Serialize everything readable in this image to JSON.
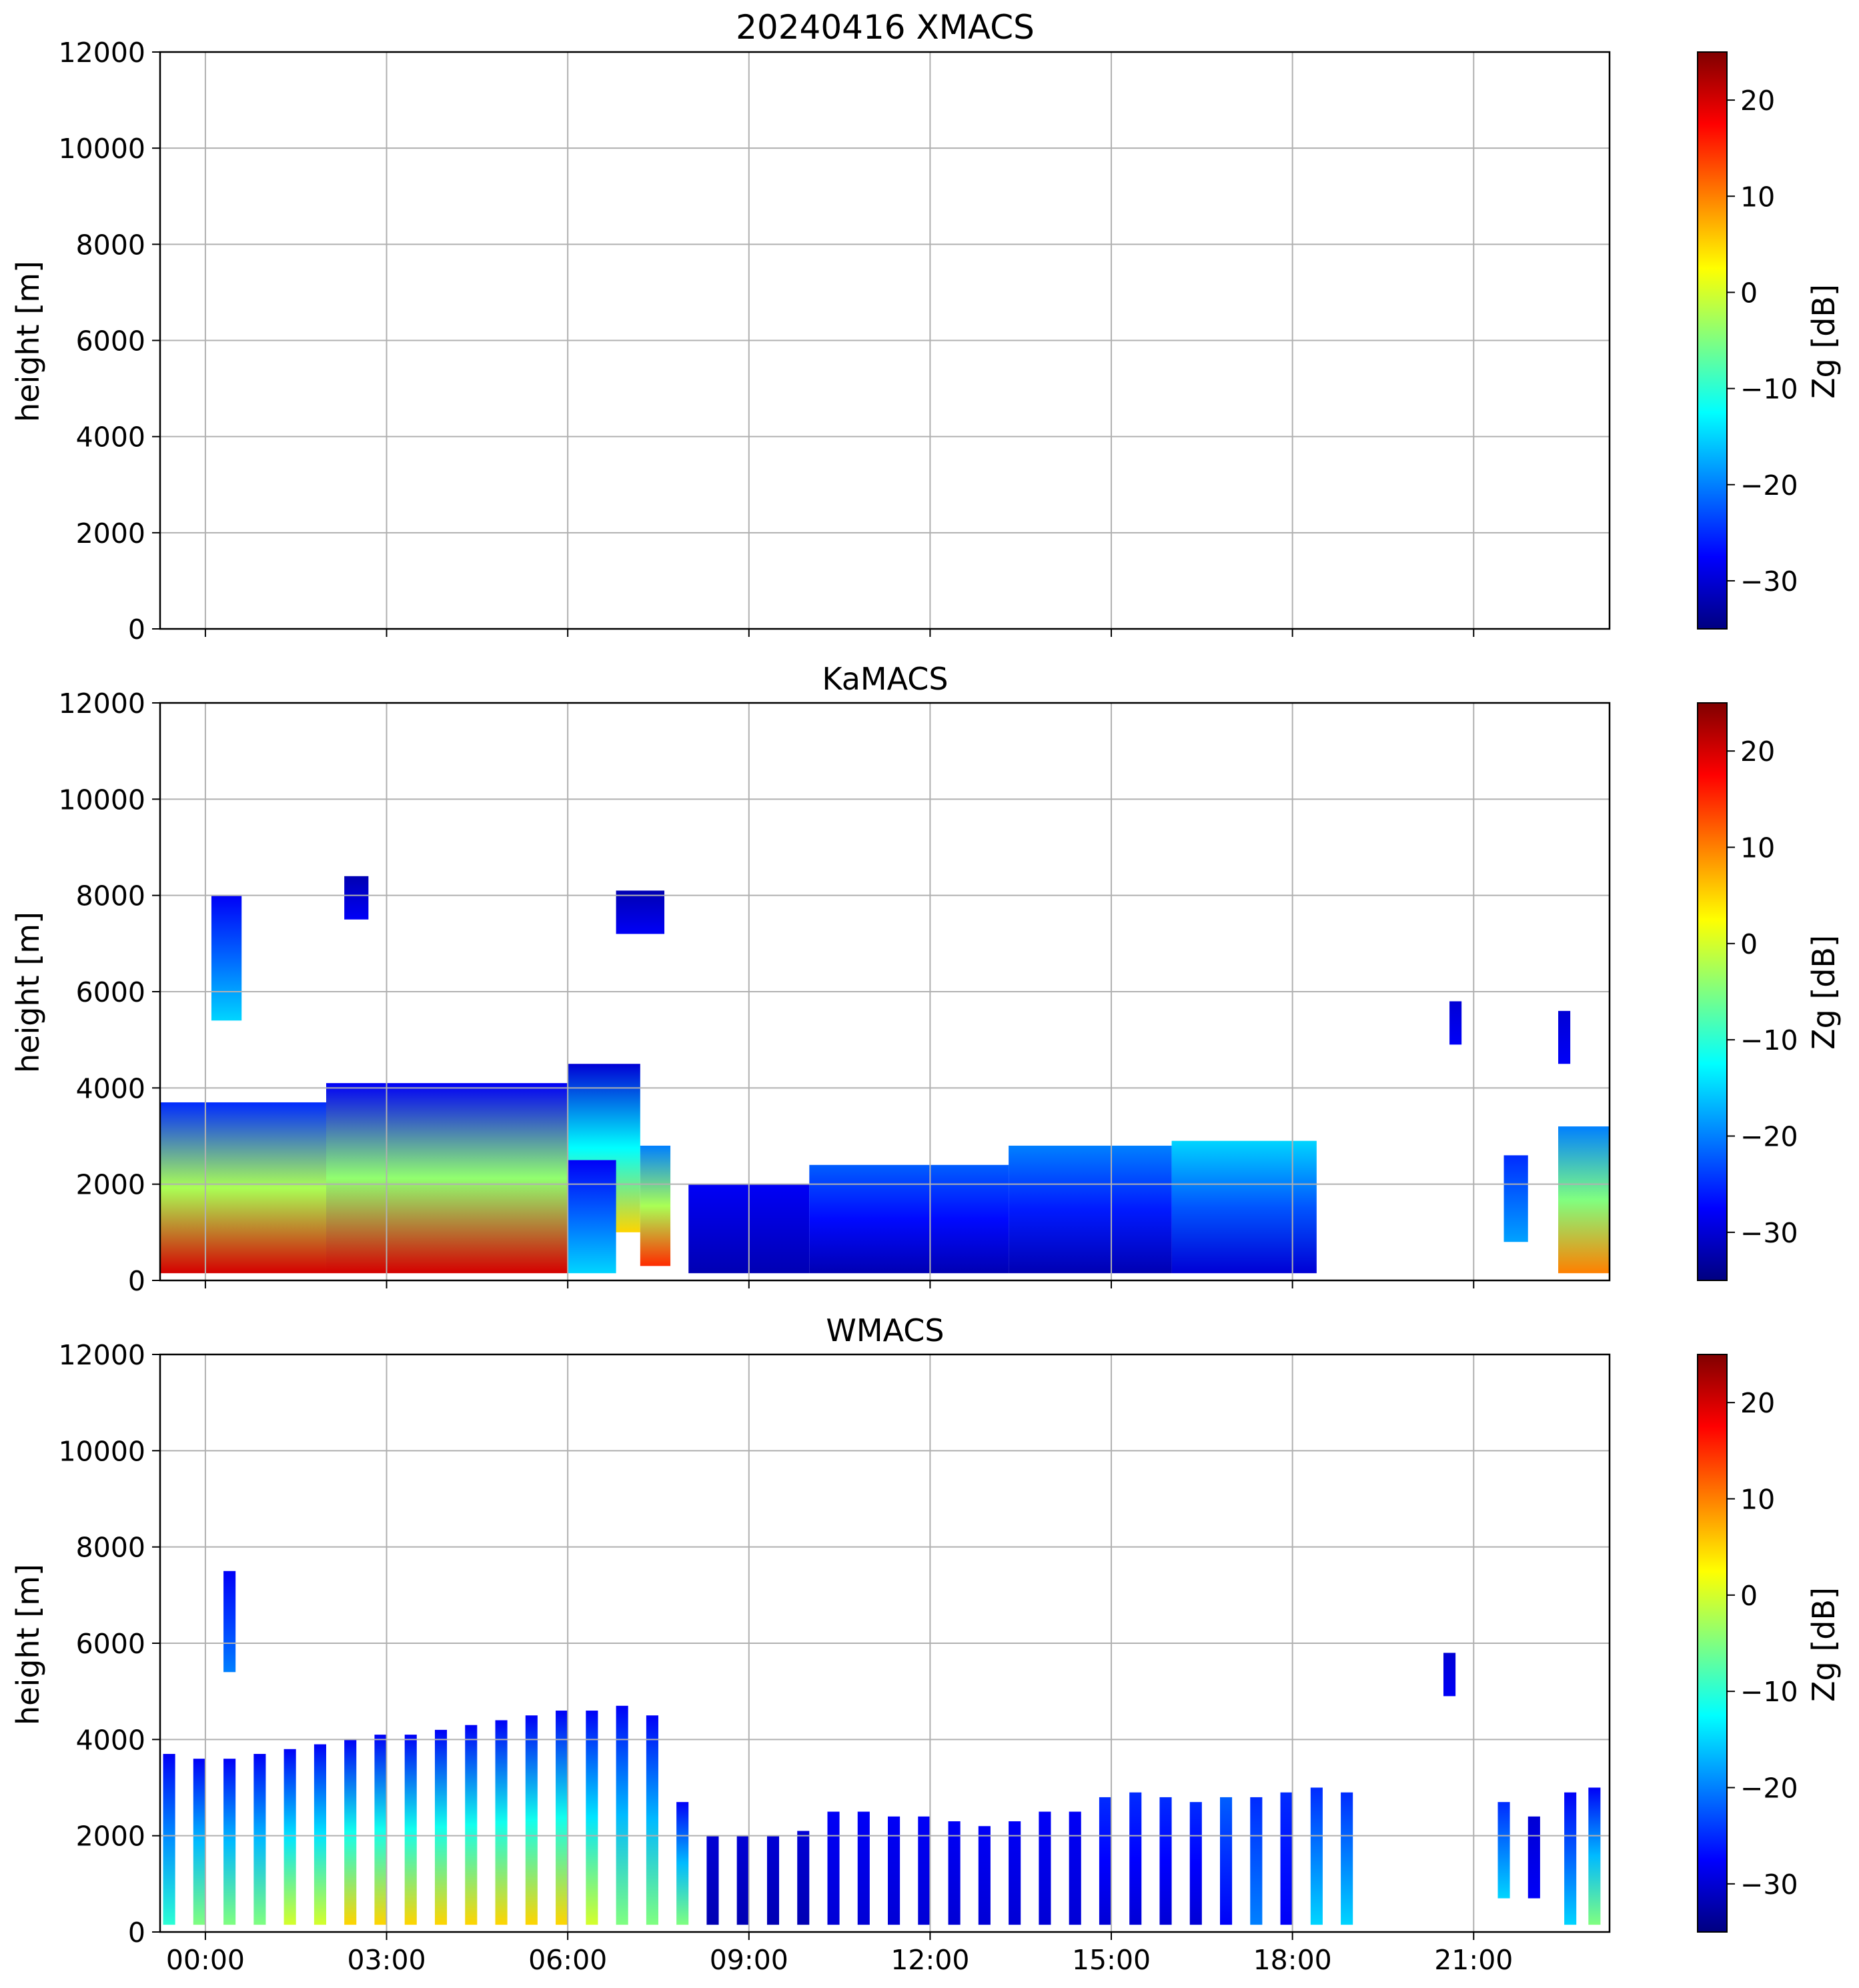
{
  "figure": {
    "colorbar_label": "Zg [dB]",
    "colorbar_ticks": [
      20,
      10,
      0,
      -10,
      -20,
      -30
    ],
    "colorbar_range": [
      -35,
      25
    ],
    "colormap": [
      "#000080",
      "#0000ff",
      "#0080ff",
      "#00ffff",
      "#80ff80",
      "#ffff00",
      "#ff8000",
      "#ff0000",
      "#800000"
    ],
    "grid_color": "#b0b0b0"
  },
  "chart_data": [
    {
      "type": "heatmap",
      "title": "20240416 XMACS",
      "ylabel": "height [m]",
      "xlabel": "",
      "ylim": [
        0,
        12000
      ],
      "xlim_hours": [
        -0.75,
        23.25
      ],
      "yticks": [
        0,
        2000,
        4000,
        6000,
        8000,
        10000,
        12000
      ],
      "xtick_hours": [
        0,
        3,
        6,
        9,
        12,
        15,
        18,
        21
      ],
      "xtick_labels": [],
      "echoes": []
    },
    {
      "type": "heatmap",
      "title": "KaMACS",
      "ylabel": "height [m]",
      "xlabel": "",
      "ylim": [
        0,
        12000
      ],
      "xlim_hours": [
        -0.75,
        23.25
      ],
      "yticks": [
        0,
        2000,
        4000,
        6000,
        8000,
        10000,
        12000
      ],
      "xtick_hours": [
        0,
        3,
        6,
        9,
        12,
        15,
        18,
        21
      ],
      "xtick_labels": [],
      "echoes": [
        {
          "t0": -0.75,
          "t1": 2.0,
          "h0": 150,
          "h1": 3700,
          "zg_base": 20,
          "zg_top": -25
        },
        {
          "t0": 2.0,
          "t1": 6.0,
          "h0": 150,
          "h1": 4100,
          "zg_base": 20,
          "zg_top": -28
        },
        {
          "t0": 6.0,
          "t1": 7.2,
          "h0": 1000,
          "h1": 4500,
          "zg_base": 5,
          "zg_top": -30
        },
        {
          "t0": 6.0,
          "t1": 6.8,
          "h0": 150,
          "h1": 2500,
          "zg_base": -15,
          "zg_top": -28
        },
        {
          "t0": 7.2,
          "t1": 7.7,
          "h0": 300,
          "h1": 2800,
          "zg_base": 15,
          "zg_top": -20
        },
        {
          "t0": 0.1,
          "t1": 0.6,
          "h0": 5400,
          "h1": 8000,
          "zg_base": -15,
          "zg_top": -28
        },
        {
          "t0": 2.3,
          "t1": 2.7,
          "h0": 7500,
          "h1": 8400,
          "zg_base": -28,
          "zg_top": -32
        },
        {
          "t0": 6.8,
          "t1": 7.6,
          "h0": 7200,
          "h1": 8100,
          "zg_base": -28,
          "zg_top": -32
        },
        {
          "t0": 8.0,
          "t1": 10.0,
          "h0": 150,
          "h1": 2000,
          "zg_base": -32,
          "zg_top": -28
        },
        {
          "t0": 10.0,
          "t1": 13.3,
          "h0": 150,
          "h1": 2400,
          "zg_base": -32,
          "zg_top": -22
        },
        {
          "t0": 13.3,
          "t1": 16.0,
          "h0": 150,
          "h1": 2800,
          "zg_base": -32,
          "zg_top": -20
        },
        {
          "t0": 16.0,
          "t1": 18.4,
          "h0": 150,
          "h1": 2900,
          "zg_base": -30,
          "zg_top": -15
        },
        {
          "t0": 20.6,
          "t1": 20.8,
          "h0": 4900,
          "h1": 5800,
          "zg_base": -28,
          "zg_top": -30
        },
        {
          "t0": 21.5,
          "t1": 21.9,
          "h0": 800,
          "h1": 2600,
          "zg_base": -18,
          "zg_top": -25
        },
        {
          "t0": 22.4,
          "t1": 22.6,
          "h0": 4500,
          "h1": 5600,
          "zg_base": -28,
          "zg_top": -30
        },
        {
          "t0": 22.4,
          "t1": 23.25,
          "h0": 150,
          "h1": 3200,
          "zg_base": 10,
          "zg_top": -20
        }
      ]
    },
    {
      "type": "heatmap",
      "title": "WMACS",
      "ylabel": "height [m]",
      "xlabel": "",
      "ylim": [
        0,
        12000
      ],
      "xlim_hours": [
        -0.75,
        23.25
      ],
      "yticks": [
        0,
        2000,
        4000,
        6000,
        8000,
        10000,
        12000
      ],
      "xtick_hours": [
        0,
        3,
        6,
        9,
        12,
        15,
        18,
        21
      ],
      "xtick_labels": [
        "00:00",
        "03:00",
        "06:00",
        "09:00",
        "12:00",
        "15:00",
        "18:00",
        "21:00"
      ],
      "echoes": [
        {
          "t0": -0.7,
          "t1": -0.5,
          "h0": 150,
          "h1": 3700,
          "zg_base": -10,
          "zg_top": -28
        },
        {
          "t0": -0.2,
          "t1": 0.0,
          "h0": 150,
          "h1": 3600,
          "zg_base": -5,
          "zg_top": -28
        },
        {
          "t0": 0.3,
          "t1": 0.5,
          "h0": 150,
          "h1": 3600,
          "zg_base": -5,
          "zg_top": -28
        },
        {
          "t0": 0.8,
          "t1": 1.0,
          "h0": 150,
          "h1": 3700,
          "zg_base": -5,
          "zg_top": -28
        },
        {
          "t0": 1.3,
          "t1": 1.5,
          "h0": 150,
          "h1": 3800,
          "zg_base": 0,
          "zg_top": -28
        },
        {
          "t0": 1.8,
          "t1": 2.0,
          "h0": 150,
          "h1": 3900,
          "zg_base": 0,
          "zg_top": -28
        },
        {
          "t0": 2.3,
          "t1": 2.5,
          "h0": 150,
          "h1": 4000,
          "zg_base": 5,
          "zg_top": -28
        },
        {
          "t0": 2.8,
          "t1": 3.0,
          "h0": 150,
          "h1": 4100,
          "zg_base": 5,
          "zg_top": -28
        },
        {
          "t0": 3.3,
          "t1": 3.5,
          "h0": 150,
          "h1": 4100,
          "zg_base": 5,
          "zg_top": -28
        },
        {
          "t0": 3.8,
          "t1": 4.0,
          "h0": 150,
          "h1": 4200,
          "zg_base": 5,
          "zg_top": -28
        },
        {
          "t0": 4.3,
          "t1": 4.5,
          "h0": 150,
          "h1": 4300,
          "zg_base": 5,
          "zg_top": -28
        },
        {
          "t0": 4.8,
          "t1": 5.0,
          "h0": 150,
          "h1": 4400,
          "zg_base": 5,
          "zg_top": -28
        },
        {
          "t0": 5.3,
          "t1": 5.5,
          "h0": 150,
          "h1": 4500,
          "zg_base": 5,
          "zg_top": -28
        },
        {
          "t0": 5.8,
          "t1": 6.0,
          "h0": 150,
          "h1": 4600,
          "zg_base": 5,
          "zg_top": -28
        },
        {
          "t0": 6.3,
          "t1": 6.5,
          "h0": 150,
          "h1": 4600,
          "zg_base": 0,
          "zg_top": -28
        },
        {
          "t0": 6.8,
          "t1": 7.0,
          "h0": 150,
          "h1": 4700,
          "zg_base": -5,
          "zg_top": -28
        },
        {
          "t0": 7.3,
          "t1": 7.5,
          "h0": 150,
          "h1": 4500,
          "zg_base": -5,
          "zg_top": -28
        },
        {
          "t0": 7.8,
          "t1": 8.0,
          "h0": 150,
          "h1": 2700,
          "zg_base": -5,
          "zg_top": -28
        },
        {
          "t0": 8.3,
          "t1": 8.5,
          "h0": 150,
          "h1": 2000,
          "zg_base": -32,
          "zg_top": -30
        },
        {
          "t0": 8.8,
          "t1": 9.0,
          "h0": 150,
          "h1": 2000,
          "zg_base": -32,
          "zg_top": -30
        },
        {
          "t0": 9.3,
          "t1": 9.5,
          "h0": 150,
          "h1": 2000,
          "zg_base": -32,
          "zg_top": -30
        },
        {
          "t0": 9.8,
          "t1": 10.0,
          "h0": 150,
          "h1": 2100,
          "zg_base": -32,
          "zg_top": -30
        },
        {
          "t0": 10.3,
          "t1": 10.5,
          "h0": 150,
          "h1": 2500,
          "zg_base": -30,
          "zg_top": -28
        },
        {
          "t0": 10.8,
          "t1": 11.0,
          "h0": 150,
          "h1": 2500,
          "zg_base": -30,
          "zg_top": -28
        },
        {
          "t0": 11.3,
          "t1": 11.5,
          "h0": 150,
          "h1": 2400,
          "zg_base": -30,
          "zg_top": -28
        },
        {
          "t0": 11.8,
          "t1": 12.0,
          "h0": 150,
          "h1": 2400,
          "zg_base": -30,
          "zg_top": -28
        },
        {
          "t0": 12.3,
          "t1": 12.5,
          "h0": 150,
          "h1": 2300,
          "zg_base": -30,
          "zg_top": -28
        },
        {
          "t0": 12.8,
          "t1": 13.0,
          "h0": 150,
          "h1": 2200,
          "zg_base": -30,
          "zg_top": -28
        },
        {
          "t0": 13.3,
          "t1": 13.5,
          "h0": 150,
          "h1": 2300,
          "zg_base": -30,
          "zg_top": -28
        },
        {
          "t0": 13.8,
          "t1": 14.0,
          "h0": 150,
          "h1": 2500,
          "zg_base": -30,
          "zg_top": -28
        },
        {
          "t0": 14.3,
          "t1": 14.5,
          "h0": 150,
          "h1": 2500,
          "zg_base": -30,
          "zg_top": -28
        },
        {
          "t0": 14.8,
          "t1": 15.0,
          "h0": 150,
          "h1": 2800,
          "zg_base": -30,
          "zg_top": -25
        },
        {
          "t0": 15.3,
          "t1": 15.5,
          "h0": 150,
          "h1": 2900,
          "zg_base": -30,
          "zg_top": -25
        },
        {
          "t0": 15.8,
          "t1": 16.0,
          "h0": 150,
          "h1": 2800,
          "zg_base": -30,
          "zg_top": -25
        },
        {
          "t0": 16.3,
          "t1": 16.5,
          "h0": 150,
          "h1": 2700,
          "zg_base": -30,
          "zg_top": -25
        },
        {
          "t0": 16.8,
          "t1": 17.0,
          "h0": 150,
          "h1": 2800,
          "zg_base": -28,
          "zg_top": -22
        },
        {
          "t0": 17.3,
          "t1": 17.5,
          "h0": 150,
          "h1": 2800,
          "zg_base": -20,
          "zg_top": -25
        },
        {
          "t0": 17.8,
          "t1": 18.0,
          "h0": 150,
          "h1": 2900,
          "zg_base": -28,
          "zg_top": -25
        },
        {
          "t0": 18.3,
          "t1": 18.5,
          "h0": 150,
          "h1": 3000,
          "zg_base": -15,
          "zg_top": -25
        },
        {
          "t0": 18.8,
          "t1": 19.0,
          "h0": 150,
          "h1": 2900,
          "zg_base": -15,
          "zg_top": -25
        },
        {
          "t0": 0.3,
          "t1": 0.5,
          "h0": 5400,
          "h1": 7500,
          "zg_base": -20,
          "zg_top": -28
        },
        {
          "t0": 20.5,
          "t1": 20.7,
          "h0": 4900,
          "h1": 5800,
          "zg_base": -28,
          "zg_top": -30
        },
        {
          "t0": 21.4,
          "t1": 21.6,
          "h0": 700,
          "h1": 2700,
          "zg_base": -15,
          "zg_top": -25
        },
        {
          "t0": 21.9,
          "t1": 22.1,
          "h0": 700,
          "h1": 2400,
          "zg_base": -28,
          "zg_top": -30
        },
        {
          "t0": 22.5,
          "t1": 22.7,
          "h0": 150,
          "h1": 2900,
          "zg_base": -15,
          "zg_top": -28
        },
        {
          "t0": 22.9,
          "t1": 23.1,
          "h0": 150,
          "h1": 3000,
          "zg_base": -5,
          "zg_top": -28
        }
      ]
    }
  ]
}
